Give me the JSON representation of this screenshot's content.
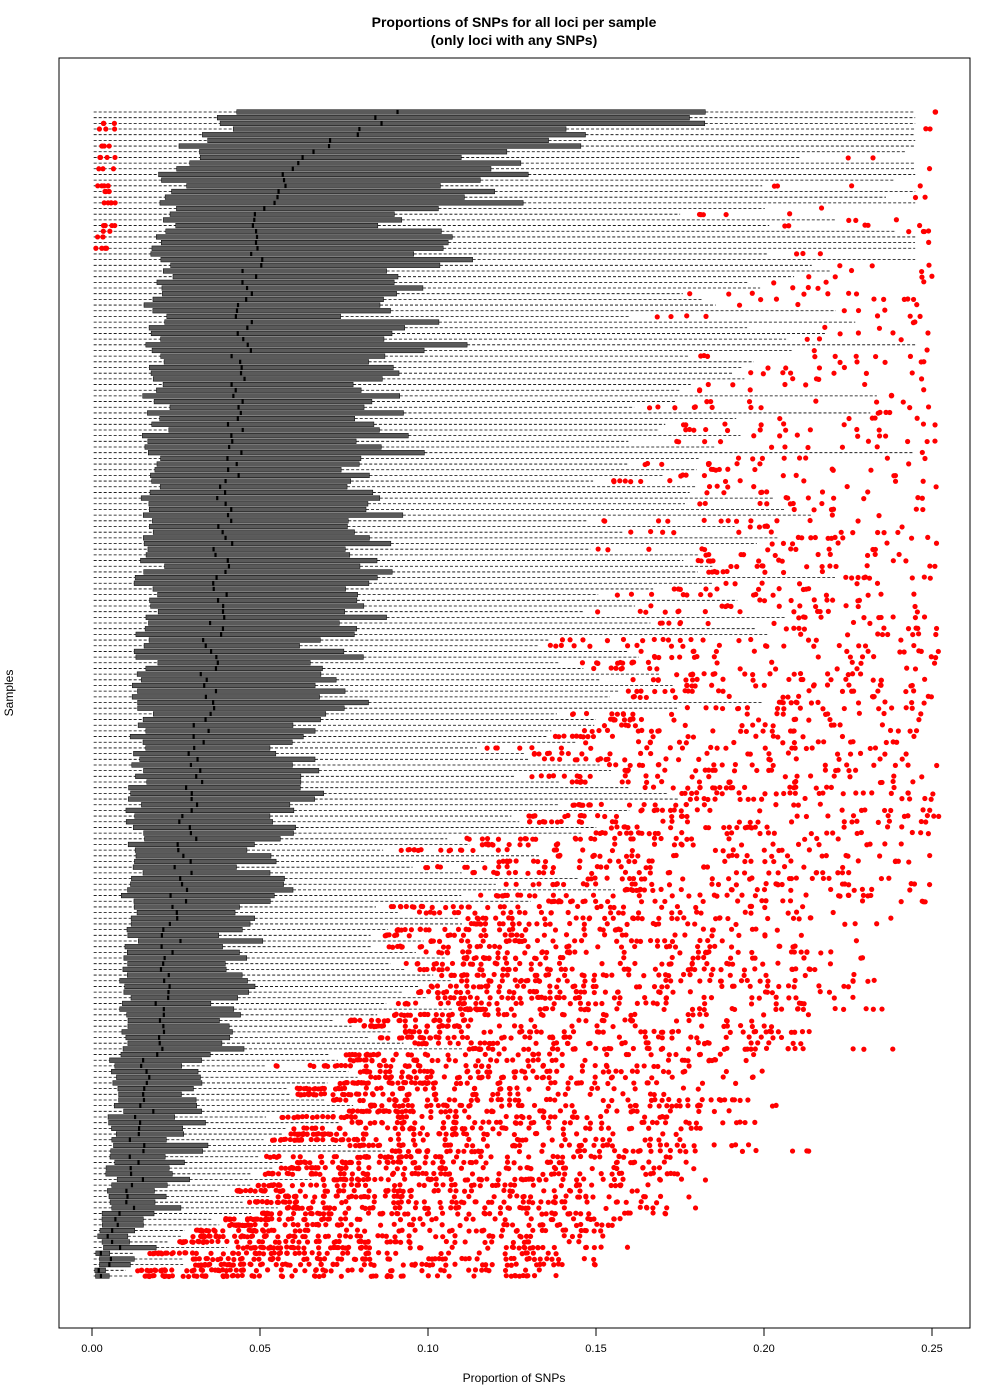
{
  "chart_data": {
    "type": "boxplot",
    "orientation": "horizontal",
    "title": "Proportions of SNPs for all loci per sample",
    "subtitle": "(only loci with any SNPs)",
    "xlabel": "Proportion of SNPs",
    "ylabel": "Samples",
    "xlim": [
      0.0,
      0.26
    ],
    "x_ticks": [
      "0.00",
      "0.05",
      "0.10",
      "0.15",
      "0.20",
      "0.25"
    ],
    "grid": false,
    "legend": "none",
    "n_samples": 206,
    "box_color": "#000000",
    "outlier_color": "#ff0000",
    "whisker_style": "dashed",
    "sample_order": "sorted by median, descending from top",
    "median_profile": [
      {
        "sample_from_top": 1,
        "median": 0.09
      },
      {
        "sample_from_top": 10,
        "median": 0.06
      },
      {
        "sample_from_top": 20,
        "median": 0.05
      },
      {
        "sample_from_top": 40,
        "median": 0.045
      },
      {
        "sample_from_top": 70,
        "median": 0.04
      },
      {
        "sample_from_top": 100,
        "median": 0.035
      },
      {
        "sample_from_top": 130,
        "median": 0.028
      },
      {
        "sample_from_top": 160,
        "median": 0.02
      },
      {
        "sample_from_top": 190,
        "median": 0.012
      },
      {
        "sample_from_top": 206,
        "median": 0.003
      }
    ],
    "max_outlier": 0.251
  }
}
